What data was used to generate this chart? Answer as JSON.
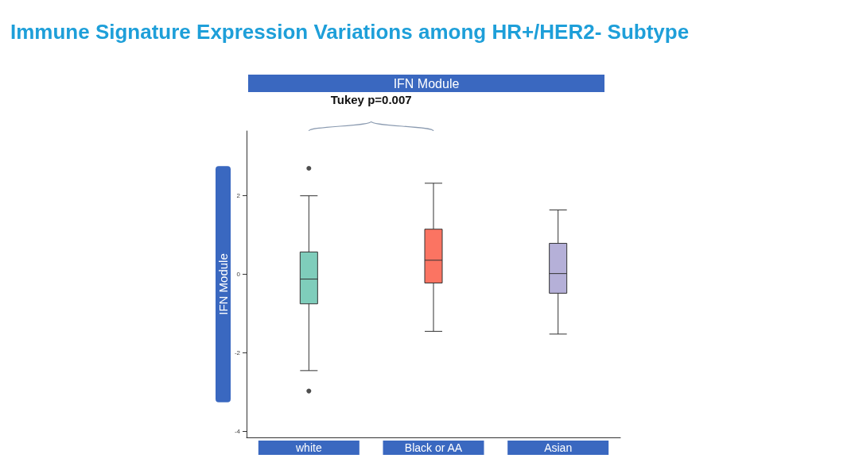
{
  "chart_data": {
    "type": "box",
    "title": "Immune Signature Expression Variations among HR+/HER2- Subtype",
    "subtitle": "IFN Module",
    "ylabel": "IFN Module",
    "categories": [
      "white",
      "Black or AA",
      "Asian"
    ],
    "colors": [
      "#7fcdbb",
      "#fb7462",
      "#b5b0d8"
    ],
    "boxes": [
      {
        "low": -2.45,
        "q1": -0.75,
        "median": -0.12,
        "q3": 0.57,
        "high": 2.0,
        "outliers": [
          2.7,
          -2.97
        ]
      },
      {
        "low": -1.45,
        "q1": -0.22,
        "median": 0.36,
        "q3": 1.15,
        "high": 2.32
      },
      {
        "low": -1.52,
        "q1": -0.48,
        "median": 0.02,
        "q3": 0.79,
        "high": 1.64
      }
    ],
    "ylim": [
      -4.15,
      3.65
    ],
    "yticks": [
      -4,
      -2,
      0,
      2
    ],
    "grid": false,
    "annotations": [
      "Tukey p=0.007"
    ]
  }
}
